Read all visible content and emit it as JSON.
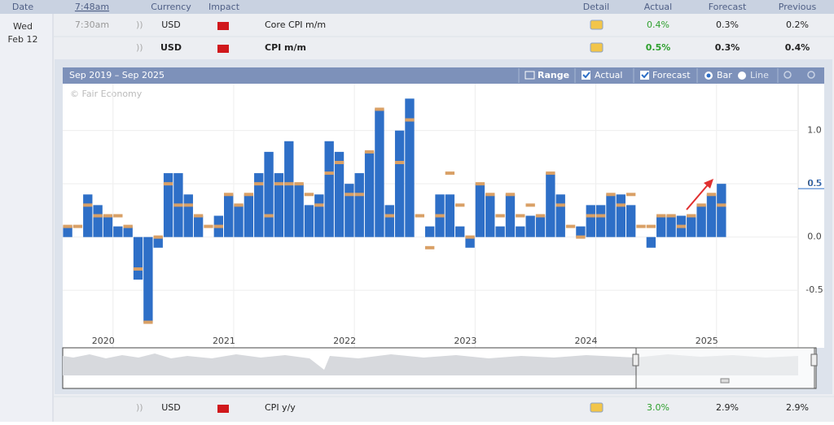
{
  "header": {
    "date": "Date",
    "time": "7:48am",
    "currency": "Currency",
    "impact": "Impact",
    "detail": "Detail",
    "actual": "Actual",
    "forecast": "Forecast",
    "previous": "Previous"
  },
  "day": {
    "weekday": "Wed",
    "date": "Feb 12"
  },
  "rows": [
    {
      "time": "7:30am",
      "currency": "USD",
      "event": "Core CPI m/m",
      "actual": "0.4%",
      "forecast": "0.3%",
      "previous": "0.2%"
    },
    {
      "currency": "USD",
      "event": "CPI m/m",
      "actual": "0.5%",
      "forecast": "0.3%",
      "previous": "0.4%"
    },
    {
      "currency": "USD",
      "event": "CPI y/y",
      "actual": "3.0%",
      "forecast": "2.9%",
      "previous": "2.9%"
    }
  ],
  "chart": {
    "type": "bar",
    "range_label": "Sep 2019 – Sep 2025",
    "buttons": {
      "range": "Range",
      "actual": "Actual",
      "forecast": "Forecast",
      "bar": "Bar",
      "line": "Line"
    },
    "watermark": "© Fair Economy",
    "series": [
      {
        "name": "Actual",
        "color": "#2e6fc7",
        "values": [
          0.1,
          0.0,
          0.4,
          0.3,
          0.2,
          0.1,
          0.1,
          -0.4,
          -0.8,
          -0.1,
          0.6,
          0.6,
          0.4,
          0.2,
          0.0,
          0.2,
          0.4,
          0.3,
          0.4,
          0.6,
          0.8,
          0.6,
          0.9,
          0.5,
          0.3,
          0.4,
          0.9,
          0.8,
          0.5,
          0.6,
          0.8,
          1.2,
          0.3,
          1.0,
          1.3,
          0.0,
          0.1,
          0.4,
          0.4,
          0.1,
          -0.1,
          0.5,
          0.4,
          0.1,
          0.4,
          0.1,
          0.2,
          0.2,
          0.6,
          0.4,
          0.0,
          0.1,
          0.3,
          0.3,
          0.4,
          0.4,
          0.3,
          0.0,
          -0.1,
          0.2,
          0.2,
          0.2,
          0.2,
          0.3,
          0.4,
          0.5
        ]
      },
      {
        "name": "Forecast",
        "color": "#d9a066",
        "values": [
          0.1,
          0.1,
          0.3,
          0.2,
          0.2,
          0.2,
          0.1,
          -0.3,
          -0.8,
          0.0,
          0.5,
          0.3,
          0.3,
          0.2,
          0.1,
          0.1,
          0.4,
          0.3,
          0.4,
          0.5,
          0.2,
          0.5,
          0.5,
          0.5,
          0.4,
          0.3,
          0.6,
          0.7,
          0.4,
          0.4,
          0.8,
          1.2,
          0.2,
          0.7,
          1.1,
          0.2,
          -0.1,
          0.2,
          0.6,
          0.3,
          0.0,
          0.5,
          0.4,
          0.2,
          0.4,
          0.2,
          0.3,
          0.2,
          0.6,
          0.3,
          0.1,
          0.0,
          0.2,
          0.2,
          0.4,
          0.3,
          0.4,
          0.1,
          0.1,
          0.2,
          0.2,
          0.1,
          0.2,
          0.3,
          0.4,
          0.3
        ]
      }
    ],
    "xticks": [
      {
        "value": 5,
        "label": "2020"
      },
      {
        "value": 17,
        "label": "2021"
      },
      {
        "value": 29,
        "label": "2022"
      },
      {
        "value": 41,
        "label": "2023"
      },
      {
        "value": 53,
        "label": "2024"
      },
      {
        "value": 65,
        "label": "2025"
      }
    ],
    "ylim": [
      -1.04,
      1.44
    ],
    "yticks": [
      {
        "value": 1,
        "label": "1.0"
      },
      0.5,
      {
        "value": 0,
        "label": "0.0"
      },
      -0.5
    ],
    "latest_value": 0.5,
    "grid": true
  }
}
